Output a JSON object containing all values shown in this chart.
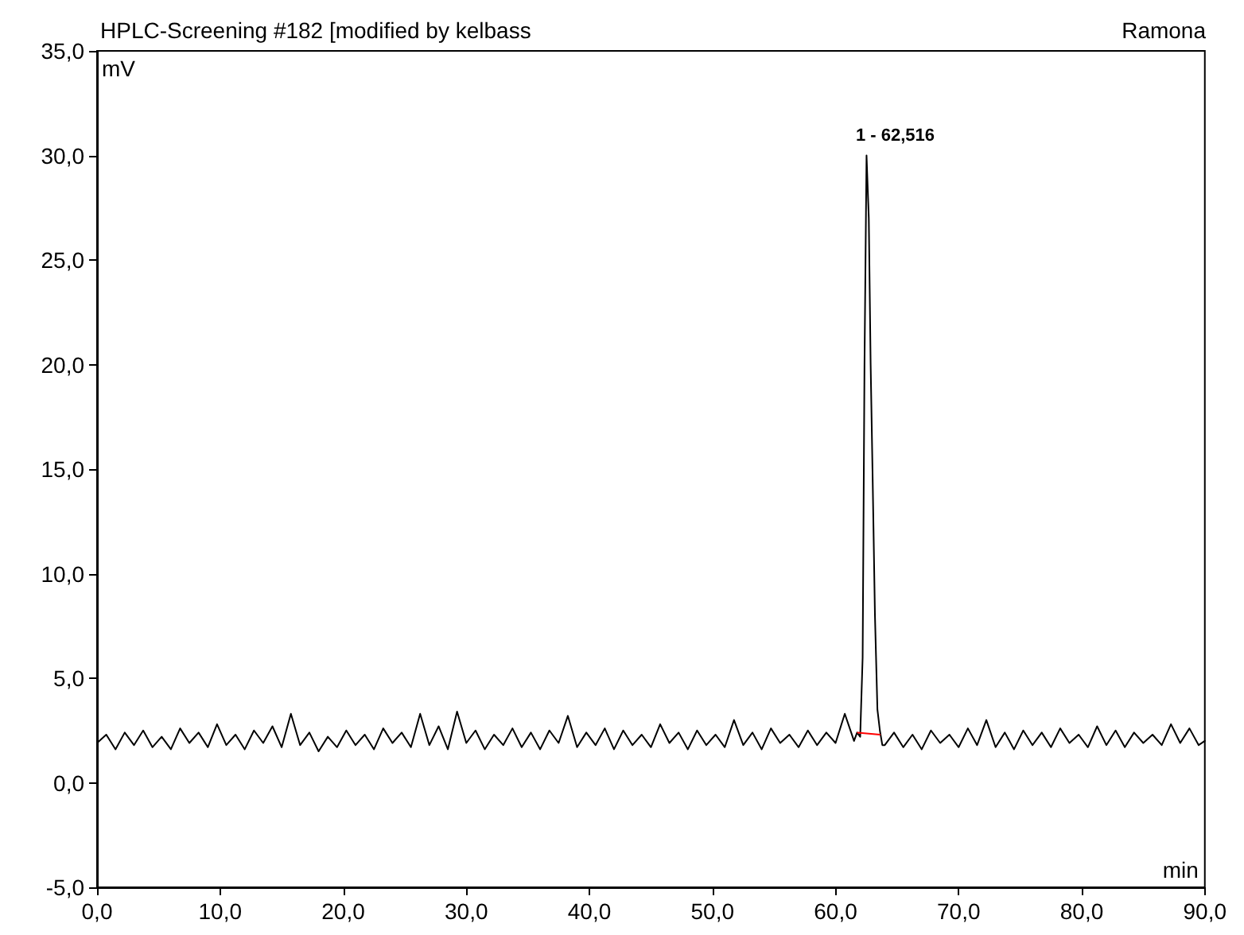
{
  "chart_data": {
    "type": "line",
    "title": "HPLC-Screening #182 [modified by kelbass",
    "annotations": [
      "Ramona",
      {
        "text": "1 - 62,516",
        "x": 62.516,
        "y": 30
      }
    ],
    "xlabel": "min",
    "ylabel": "mV",
    "xlim": [
      0,
      90
    ],
    "ylim": [
      -5,
      35
    ],
    "xticks": [
      {
        "value": 0,
        "label": "0,0"
      },
      {
        "value": 10,
        "label": "10,0"
      },
      {
        "value": 20,
        "label": "20,0"
      },
      {
        "value": 30,
        "label": "30,0"
      },
      {
        "value": 40,
        "label": "40,0"
      },
      {
        "value": 50,
        "label": "50,0"
      },
      {
        "value": 60,
        "label": "60,0"
      },
      {
        "value": 70,
        "label": "70,0"
      },
      {
        "value": 80,
        "label": "80,0"
      },
      {
        "value": 90,
        "label": "90,0"
      }
    ],
    "yticks": [
      {
        "value": -5,
        "label": "-5,0"
      },
      {
        "value": 0,
        "label": "0,0"
      },
      {
        "value": 5,
        "label": "5,0"
      },
      {
        "value": 10,
        "label": "10,0"
      },
      {
        "value": 15,
        "label": "15,0"
      },
      {
        "value": 20,
        "label": "20,0"
      },
      {
        "value": 25,
        "label": "25,0"
      },
      {
        "value": 30,
        "label": "30,0"
      },
      {
        "value": 35,
        "label": "35,0"
      }
    ],
    "grid": false,
    "marker": "none",
    "line_style": "solid",
    "series": [
      {
        "color": "#000000",
        "x": [
          0,
          0.75,
          1.5,
          2.25,
          3,
          3.75,
          4.5,
          5.25,
          6,
          6.75,
          7.5,
          8.25,
          9,
          9.75,
          10.5,
          11.25,
          12,
          12.75,
          13.5,
          14.25,
          15,
          15.75,
          16.5,
          17.25,
          18,
          18.75,
          19.5,
          20.25,
          21,
          21.75,
          22.5,
          23.25,
          24,
          24.75,
          25.5,
          26.25,
          27,
          27.75,
          28.5,
          29.25,
          30,
          30.75,
          31.5,
          32.25,
          33,
          33.75,
          34.5,
          35.25,
          36,
          36.75,
          37.5,
          38.25,
          39,
          39.75,
          40.5,
          41.25,
          42,
          42.75,
          43.5,
          44.25,
          45,
          45.75,
          46.5,
          47.25,
          48,
          48.75,
          49.5,
          50.25,
          51,
          51.75,
          52.5,
          53.25,
          54,
          54.75,
          55.5,
          56.25,
          57,
          57.75,
          58.5,
          59.25,
          60,
          60.75,
          61.5,
          61.75,
          62.0,
          62.2,
          62.35,
          62.516,
          62.7,
          62.85,
          63.0,
          63.2,
          63.4,
          63.6,
          63.8,
          64,
          64.75,
          65.5,
          66.25,
          67,
          67.75,
          68.5,
          69.25,
          70,
          70.75,
          71.5,
          72.25,
          73,
          73.75,
          74.5,
          75.25,
          76,
          76.75,
          77.5,
          78.25,
          79,
          79.75,
          80.5,
          81.25,
          82,
          82.75,
          83.5,
          84.25,
          85,
          85.75,
          86.5,
          87.25,
          88,
          88.75,
          89.5,
          90
        ],
        "values": [
          1.9,
          2.3,
          1.6,
          2.4,
          1.8,
          2.5,
          1.7,
          2.2,
          1.6,
          2.6,
          1.9,
          2.4,
          1.7,
          2.8,
          1.8,
          2.3,
          1.6,
          2.5,
          1.9,
          2.7,
          1.7,
          3.3,
          1.8,
          2.4,
          1.5,
          2.2,
          1.7,
          2.5,
          1.8,
          2.3,
          1.6,
          2.6,
          1.9,
          2.4,
          1.7,
          3.3,
          1.8,
          2.7,
          1.6,
          3.4,
          1.9,
          2.5,
          1.6,
          2.3,
          1.8,
          2.6,
          1.7,
          2.4,
          1.6,
          2.5,
          1.9,
          3.2,
          1.7,
          2.4,
          1.8,
          2.6,
          1.6,
          2.5,
          1.8,
          2.3,
          1.7,
          2.8,
          1.9,
          2.4,
          1.6,
          2.5,
          1.8,
          2.3,
          1.7,
          3.0,
          1.8,
          2.4,
          1.6,
          2.6,
          1.9,
          2.3,
          1.7,
          2.5,
          1.8,
          2.4,
          1.9,
          3.3,
          2.0,
          2.4,
          2.2,
          6,
          20,
          30,
          27,
          20,
          15,
          8,
          3.5,
          2.5,
          1.8,
          1.8,
          2.4,
          1.7,
          2.3,
          1.6,
          2.5,
          1.9,
          2.3,
          1.7,
          2.6,
          1.8,
          3.0,
          1.7,
          2.4,
          1.6,
          2.5,
          1.8,
          2.4,
          1.7,
          2.6,
          1.9,
          2.3,
          1.7,
          2.7,
          1.8,
          2.5,
          1.7,
          2.4,
          1.9,
          2.3,
          1.8,
          2.8,
          1.9,
          2.6,
          1.8,
          2.0
        ]
      },
      {
        "color": "#ff0000",
        "x": [
          61.8,
          63.6
        ],
        "values": [
          2.4,
          2.3
        ]
      }
    ]
  }
}
